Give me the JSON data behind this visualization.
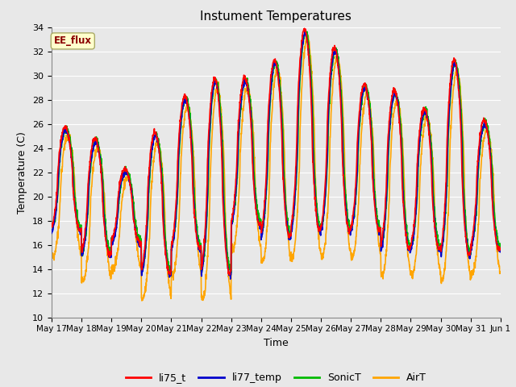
{
  "title": "Instument Temperatures",
  "xlabel": "Time",
  "ylabel": "Temperature (C)",
  "ylim": [
    10,
    34
  ],
  "yticks": [
    10,
    12,
    14,
    16,
    18,
    20,
    22,
    24,
    26,
    28,
    30,
    32,
    34
  ],
  "annotation_text": "EE_flux",
  "annotation_color": "#8B0000",
  "annotation_bg": "#FFFFCC",
  "series_colors": {
    "li75_t": "#FF0000",
    "li77_temp": "#0000CC",
    "SonicT": "#00BB00",
    "AirT": "#FFA500"
  },
  "series_names": [
    "li75_t",
    "li77_temp",
    "SonicT",
    "AirT"
  ],
  "legend_colors": [
    "#FF0000",
    "#0000CC",
    "#00BB00",
    "#FFA500"
  ],
  "bg_color": "#E8E8E8",
  "grid_color": "#FFFFFF",
  "x_tick_labels": [
    "May 17",
    "May 18",
    "May 19",
    "May 20",
    "May 21",
    "May 22",
    "May 23",
    "May 24",
    "May 25",
    "May 26",
    "May 27",
    "May 28",
    "May 29",
    "May 30",
    "May 31",
    "Jun 1"
  ],
  "line_width": 1.2,
  "figsize": [
    6.4,
    4.8
  ],
  "dpi": 100
}
